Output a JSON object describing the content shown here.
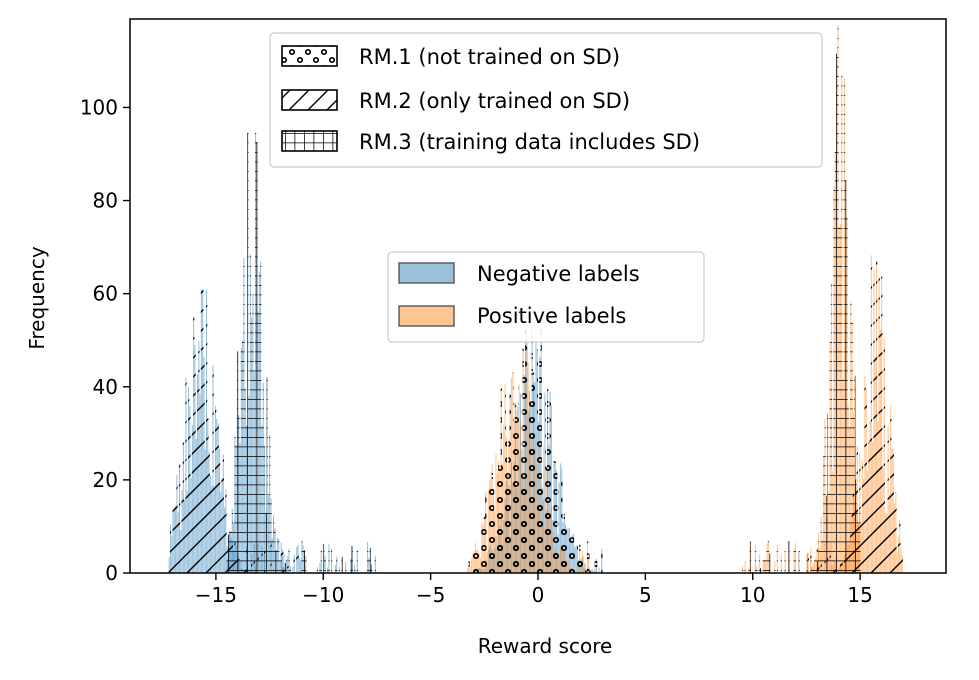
{
  "chart_data": {
    "type": "histogram",
    "xlabel": "Reward score",
    "ylabel": "Frequency",
    "xlim": [
      -19,
      19
    ],
    "ylim": [
      0,
      119
    ],
    "xticks": [
      -15,
      -10,
      -5,
      0,
      5,
      10,
      15
    ],
    "yticks": [
      0,
      20,
      40,
      60,
      80,
      100
    ],
    "grid": false,
    "colors": {
      "negative": "#1f77b4",
      "positive": "#ff7f0e",
      "opacity": 0.45
    },
    "label_legend": {
      "placement": "center",
      "entries": [
        {
          "name": "Negative labels",
          "color": "#1f77b4"
        },
        {
          "name": "Positive labels",
          "color": "#ff7f0e"
        }
      ]
    },
    "model_legend": {
      "placement": "upper-center",
      "entries": [
        {
          "name": "RM.1 (not trained on SD)",
          "hatch": "circles"
        },
        {
          "name": "RM.2 (only trained on SD)",
          "hatch": "diagonal"
        },
        {
          "name": "RM.3 (training data includes SD)",
          "hatch": "grid"
        }
      ]
    },
    "series": [
      {
        "model": "RM.1 (not trained on SD)",
        "label": "Negative labels",
        "hatch": "circles",
        "range": [
          -3,
          3
        ],
        "mean": -0.2,
        "std": 0.95,
        "peak": 50
      },
      {
        "model": "RM.1 (not trained on SD)",
        "label": "Positive labels",
        "hatch": "circles",
        "range": [
          -3.3,
          2.7
        ],
        "mean": -0.9,
        "std": 1.0,
        "peak": 48
      },
      {
        "model": "RM.2 (only trained on SD)",
        "label": "Negative labels",
        "hatch": "diagonal",
        "range": [
          -17.2,
          -11.0
        ],
        "mean": -15.7,
        "std": 0.75,
        "peak": 58
      },
      {
        "model": "RM.2 (only trained on SD)",
        "label": "Positive labels",
        "hatch": "diagonal",
        "range": [
          12.5,
          17.0
        ],
        "mean": 15.7,
        "std": 0.6,
        "peak": 65
      },
      {
        "model": "RM.3 (training data includes SD)",
        "label": "Negative labels",
        "hatch": "grid",
        "range": [
          -14.5,
          -7.5
        ],
        "mean": -13.3,
        "std": 0.55,
        "peak": 90
      },
      {
        "model": "RM.3 (training data includes SD)",
        "label": "Positive labels",
        "hatch": "grid",
        "range": [
          9.5,
          15.0
        ],
        "mean": 14.1,
        "std": 0.45,
        "peak": 112
      }
    ]
  }
}
